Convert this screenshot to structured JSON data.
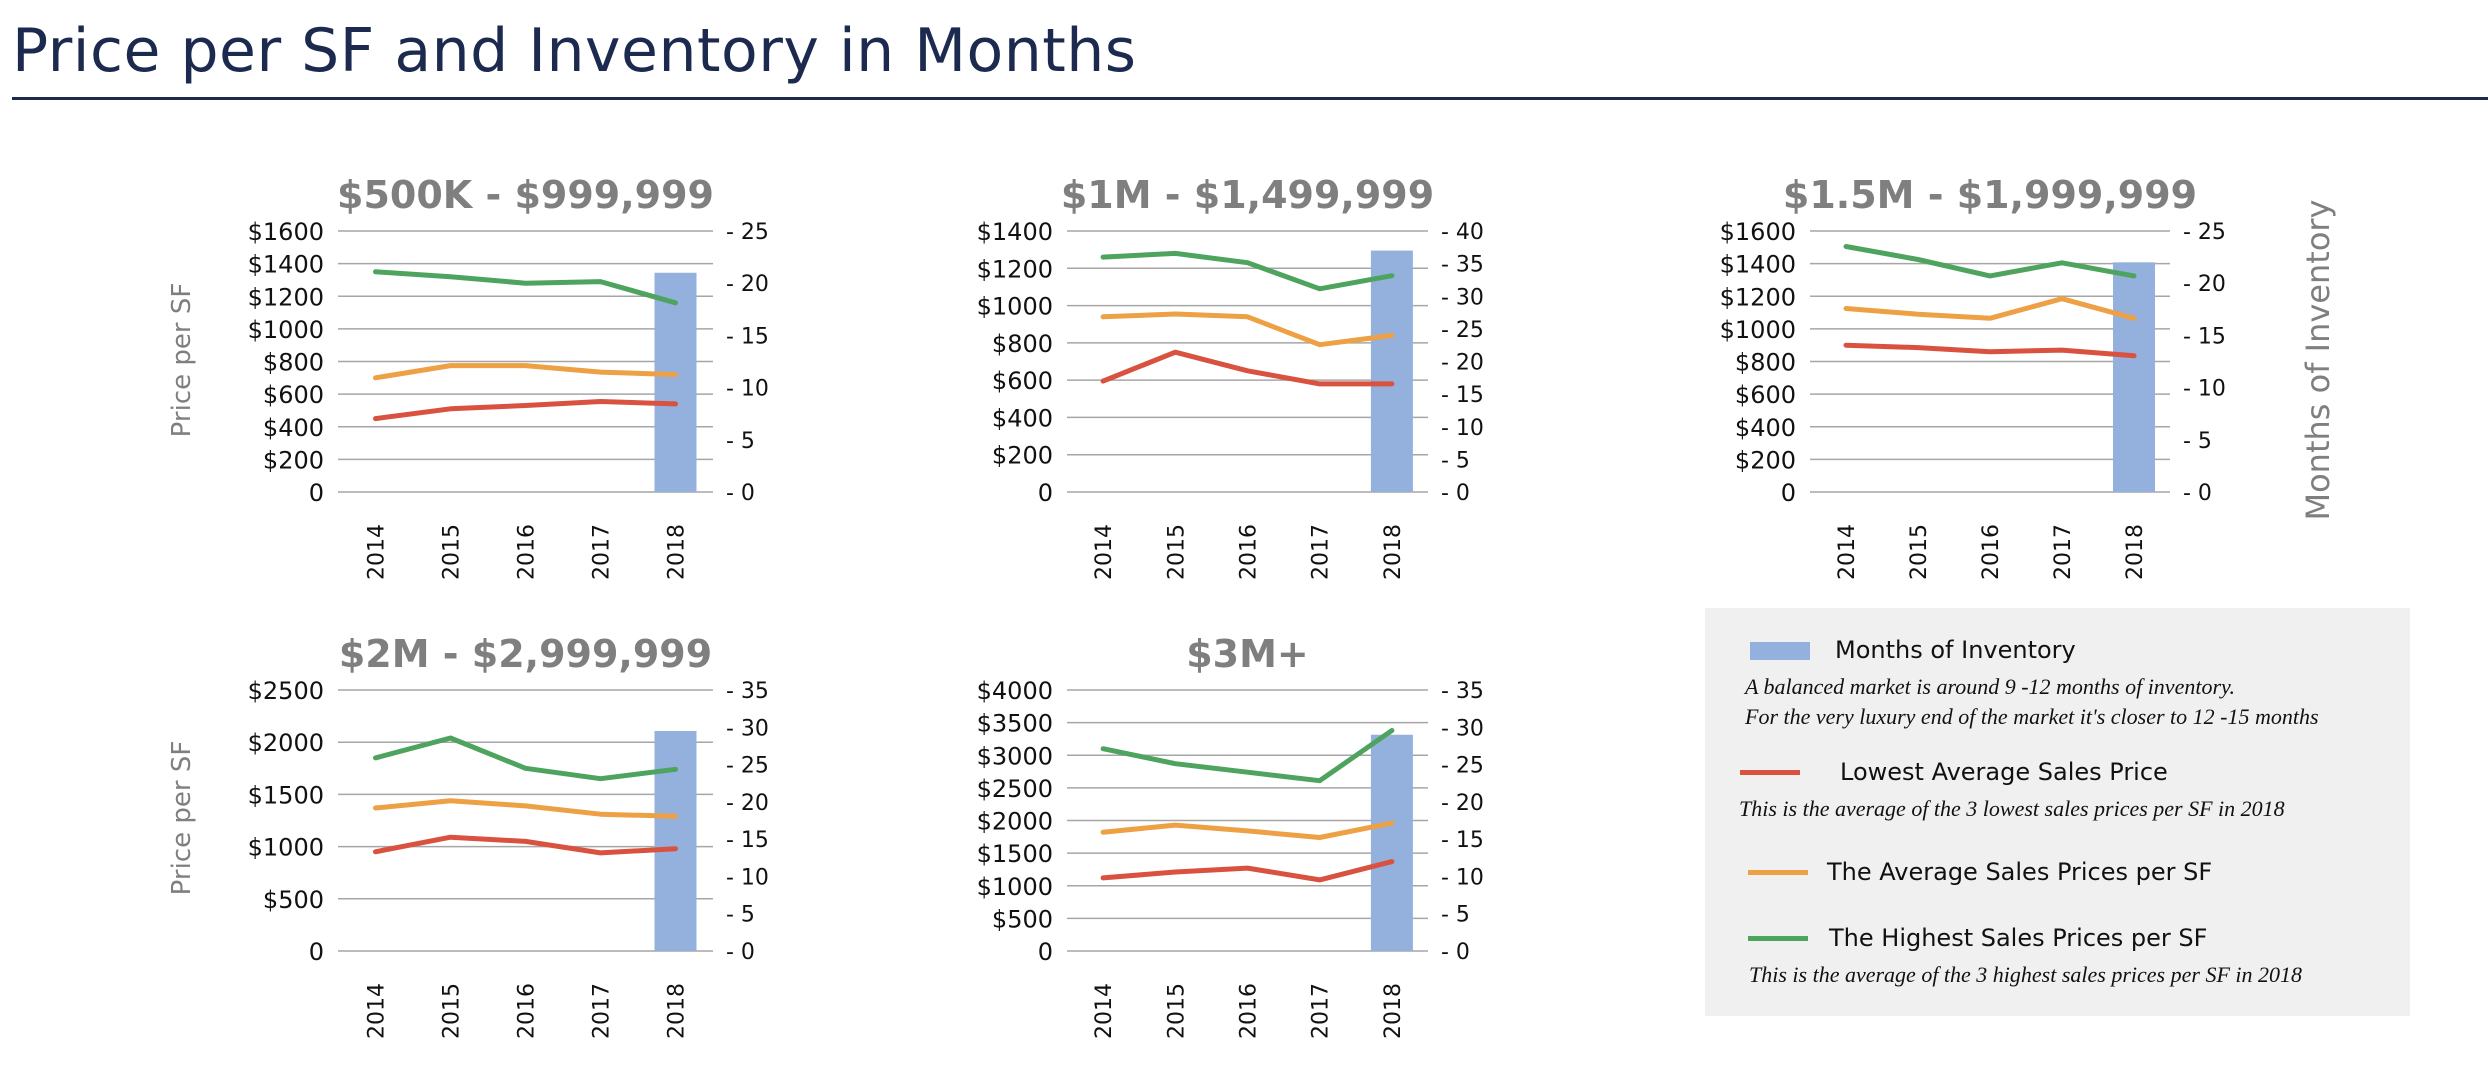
{
  "page": {
    "title": "Price per SF and Inventory in Months"
  },
  "colors": {
    "lowest": "#d9513f",
    "average": "#eda044",
    "highest": "#4ea35e",
    "inventory": "#93b1dc",
    "title": "#1c2a4f",
    "chart_title": "#7f7f7f",
    "grid": "#a6a6a6"
  },
  "axis_labels": {
    "left": "Price per SF",
    "right": "Months of Inventory"
  },
  "chart_data": [
    {
      "type": "line",
      "title": "$500K - $999,999",
      "categories": [
        "2014",
        "2015",
        "2016",
        "2017",
        "2018"
      ],
      "ylabel": "Price per SF",
      "ylim": [
        0,
        1600
      ],
      "y_ticks": [
        "0",
        "$200",
        "$400",
        "$600",
        "$800",
        "$1000",
        "$1200",
        "$1400",
        "$1600"
      ],
      "y2lim": [
        0,
        25
      ],
      "y2_ticks": [
        "- 0",
        "- 5",
        "- 10",
        "- 15",
        "- 20",
        "- 25"
      ],
      "series": [
        {
          "name": "Lowest Average Sales Price",
          "values": [
            450,
            510,
            530,
            555,
            540
          ]
        },
        {
          "name": "The Average Sales Prices per SF",
          "values": [
            700,
            775,
            775,
            735,
            720
          ]
        },
        {
          "name": "The Highest Sales Prices per SF",
          "values": [
            1350,
            1320,
            1280,
            1290,
            1160
          ]
        }
      ],
      "inventory": {
        "category": "2018",
        "value": 21
      },
      "grid": true
    },
    {
      "type": "line",
      "title": "$1M - $1,499,999",
      "categories": [
        "2014",
        "2015",
        "2016",
        "2017",
        "2018"
      ],
      "ylabel": "",
      "ylim": [
        0,
        1400
      ],
      "y_ticks": [
        "0",
        "$200",
        "$400",
        "$600",
        "$800",
        "$1000",
        "$1200",
        "$1400"
      ],
      "y2lim": [
        0,
        40
      ],
      "y2_ticks": [
        "- 0",
        "- 5",
        "- 10",
        "- 15",
        "- 20",
        "- 25",
        "- 30",
        "- 35",
        "- 40"
      ],
      "series": [
        {
          "name": "Lowest Average Sales Price",
          "values": [
            595,
            750,
            650,
            580,
            580
          ]
        },
        {
          "name": "The Average Sales Prices per SF",
          "values": [
            940,
            955,
            940,
            790,
            840
          ]
        },
        {
          "name": "The Highest Sales Prices per SF",
          "values": [
            1260,
            1280,
            1230,
            1090,
            1160
          ]
        }
      ],
      "inventory": {
        "category": "2018",
        "value": 37
      },
      "grid": true
    },
    {
      "type": "line",
      "title": "$1.5M - $1,999,999",
      "categories": [
        "2014",
        "2015",
        "2016",
        "2017",
        "2018"
      ],
      "ylabel": "",
      "y2label": "Months of Inventory",
      "ylim": [
        0,
        1600
      ],
      "y_ticks": [
        "0",
        "$200",
        "$400",
        "$600",
        "$800",
        "$1000",
        "$1200",
        "$1400",
        "$1600"
      ],
      "y2lim": [
        0,
        25
      ],
      "y2_ticks": [
        "- 0",
        "- 5",
        "- 10",
        "- 15",
        "- 20",
        "- 25"
      ],
      "series": [
        {
          "name": "Lowest Average Sales Price",
          "values": [
            900,
            885,
            860,
            870,
            835
          ]
        },
        {
          "name": "The Average Sales Prices per SF",
          "values": [
            1125,
            1090,
            1065,
            1185,
            1065
          ]
        },
        {
          "name": "The Highest Sales Prices per SF",
          "values": [
            1505,
            1425,
            1325,
            1405,
            1325
          ]
        }
      ],
      "inventory": {
        "category": "2018",
        "value": 22
      },
      "grid": true
    },
    {
      "type": "line",
      "title": "$2M - $2,999,999",
      "categories": [
        "2014",
        "2015",
        "2016",
        "2017",
        "2018"
      ],
      "ylabel": "Price per SF",
      "ylim": [
        0,
        2500
      ],
      "y_ticks": [
        "0",
        "$500",
        "$1000",
        "$1500",
        "$2000",
        "$2500"
      ],
      "y2lim": [
        0,
        35
      ],
      "y2_ticks": [
        "- 0",
        "- 5",
        "- 10",
        "- 15",
        "- 20",
        "- 25",
        "- 30",
        "- 35"
      ],
      "series": [
        {
          "name": "Lowest Average Sales Price",
          "values": [
            950,
            1090,
            1050,
            940,
            980
          ]
        },
        {
          "name": "The Average Sales Prices per SF",
          "values": [
            1370,
            1440,
            1390,
            1310,
            1290
          ]
        },
        {
          "name": "The Highest Sales Prices per SF",
          "values": [
            1850,
            2040,
            1750,
            1650,
            1740
          ]
        }
      ],
      "inventory": {
        "category": "2018",
        "value": 29.5
      },
      "grid": true
    },
    {
      "type": "line",
      "title": "$3M+",
      "categories": [
        "2014",
        "2015",
        "2016",
        "2017",
        "2018"
      ],
      "ylabel": "",
      "ylim": [
        0,
        4000
      ],
      "y_ticks": [
        "0",
        "$500",
        "$1000",
        "$1500",
        "$2000",
        "$2500",
        "$3000",
        "$3500",
        "$4000"
      ],
      "y2lim": [
        0,
        35
      ],
      "y2_ticks": [
        "- 0",
        "- 5",
        "- 10",
        "- 15",
        "- 20",
        "- 25",
        "- 30",
        "- 35"
      ],
      "series": [
        {
          "name": "Lowest Average Sales Price",
          "values": [
            1120,
            1210,
            1270,
            1090,
            1370
          ]
        },
        {
          "name": "The Average Sales Prices per SF",
          "values": [
            1820,
            1930,
            1840,
            1740,
            1960
          ]
        },
        {
          "name": "The Highest Sales Prices per SF",
          "values": [
            3100,
            2870,
            2740,
            2610,
            3380
          ]
        }
      ],
      "inventory": {
        "category": "2018",
        "value": 29
      },
      "grid": true
    }
  ],
  "legend": {
    "inventory_label": "Months of Inventory",
    "inventory_note_1": "A balanced market is around 9 -12 months of inventory.",
    "inventory_note_2": "For the very luxury end of the market it's closer to 12 -15 months",
    "lowest_label": "Lowest Average Sales Price",
    "lowest_note": "This is the average of the 3 lowest  sales prices per SF in 2018",
    "average_label": "The Average Sales Prices per SF",
    "highest_label": "The Highest Sales Prices per SF",
    "highest_note": "This is the average of the 3 highest  sales prices per SF in 2018"
  }
}
